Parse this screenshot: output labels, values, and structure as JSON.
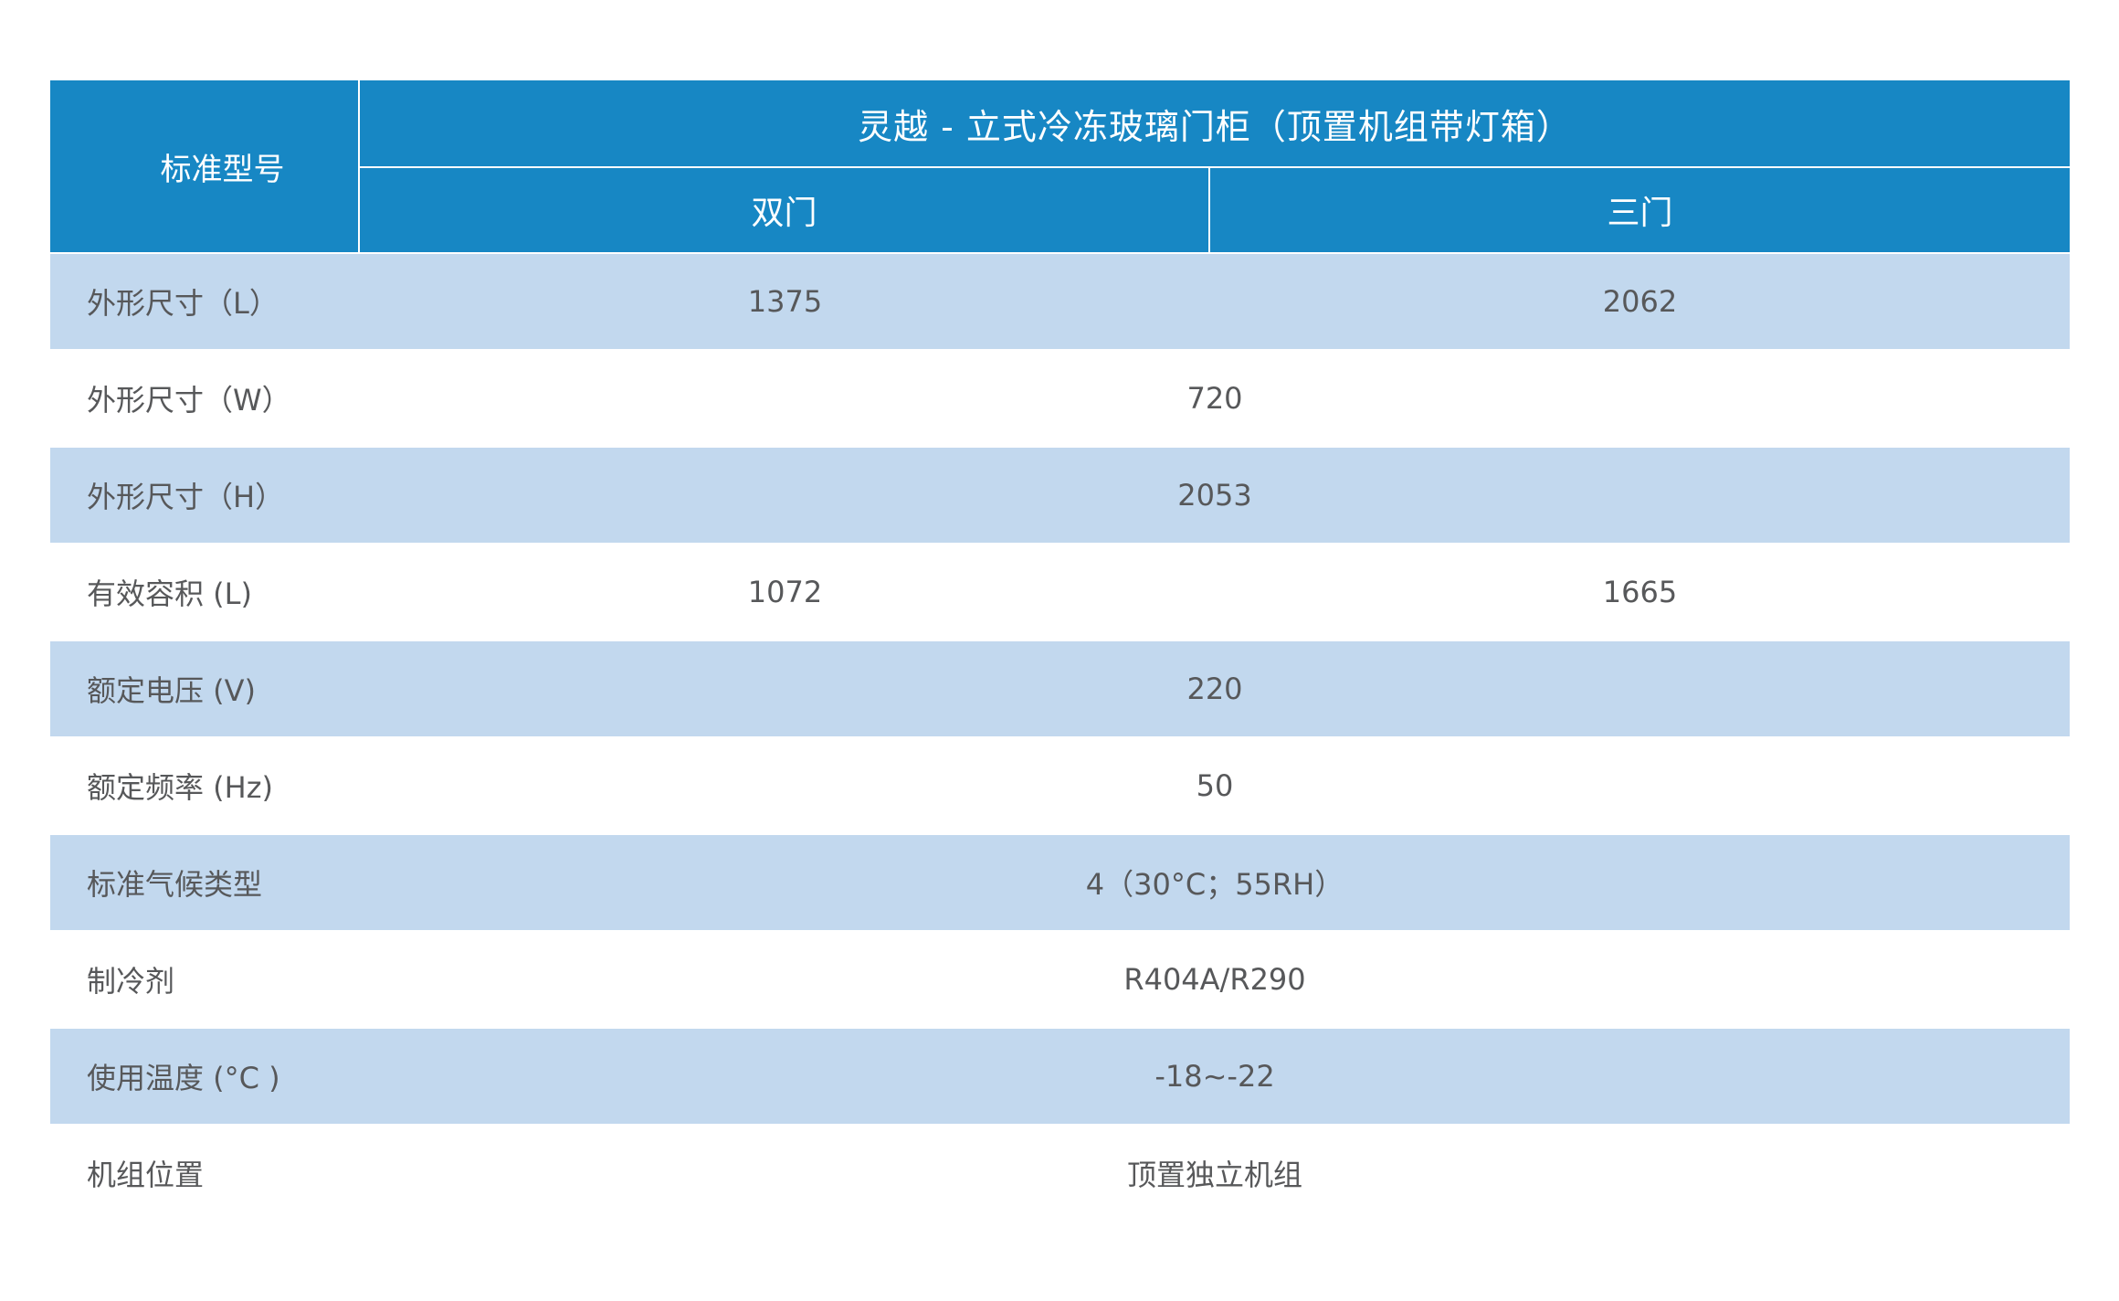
{
  "table": {
    "corner_label": "标准型号",
    "title": "灵越 - 立式冷冻玻璃门柜（顶置机组带灯箱）",
    "columns": [
      {
        "label": "双门"
      },
      {
        "label": "三门"
      }
    ],
    "rows": [
      {
        "label": "外形尺寸（L）",
        "values": [
          "1375",
          "2062"
        ]
      },
      {
        "label": "外形尺寸（W）",
        "values": [
          "720"
        ]
      },
      {
        "label": "外形尺寸（H）",
        "values": [
          "2053"
        ]
      },
      {
        "label": "有效容积 (L)",
        "values": [
          "1072",
          "1665"
        ]
      },
      {
        "label": "额定电压 (V)",
        "values": [
          "220"
        ]
      },
      {
        "label": "额定频率 (Hz)",
        "values": [
          "50"
        ]
      },
      {
        "label": "标准气候类型",
        "values": [
          "4（30°C；55RH）"
        ]
      },
      {
        "label": "制冷剂",
        "values": [
          "R404A/R290"
        ]
      },
      {
        "label": "使用温度 (°C )",
        "values": [
          "-18~-22"
        ]
      },
      {
        "label": "机组位置",
        "values": [
          "顶置独立机组"
        ]
      }
    ],
    "colors": {
      "header_bg": "#1787c4",
      "header_text": "#ffffff",
      "shaded_row_bg": "#c2d8ee",
      "plain_row_bg": "#ffffff",
      "body_text": "#57585a"
    }
  },
  "chart_data": {
    "type": "table",
    "title": "灵越 - 立式冷冻玻璃门柜（顶置机组带灯箱）",
    "corner_header": "标准型号",
    "column_headers": [
      "双门",
      "三门"
    ],
    "rows": [
      {
        "label": "外形尺寸（L）",
        "双门": "1375",
        "三门": "2062"
      },
      {
        "label": "外形尺寸（W）",
        "双门": "720",
        "三门": "720"
      },
      {
        "label": "外形尺寸（H）",
        "双门": "2053",
        "三门": "2053"
      },
      {
        "label": "有效容积 (L)",
        "双门": "1072",
        "三门": "1665"
      },
      {
        "label": "额定电压 (V)",
        "双门": "220",
        "三门": "220"
      },
      {
        "label": "额定频率 (Hz)",
        "双门": "50",
        "三门": "50"
      },
      {
        "label": "标准气候类型",
        "双门": "4（30°C；55RH）",
        "三门": "4（30°C；55RH）"
      },
      {
        "label": "制冷剂",
        "双门": "R404A/R290",
        "三门": "R404A/R290"
      },
      {
        "label": "使用温度 (°C )",
        "双门": "-18~-22",
        "三门": "-18~-22"
      },
      {
        "label": "机组位置",
        "双门": "顶置独立机组",
        "三门": "顶置独立机组"
      }
    ]
  }
}
